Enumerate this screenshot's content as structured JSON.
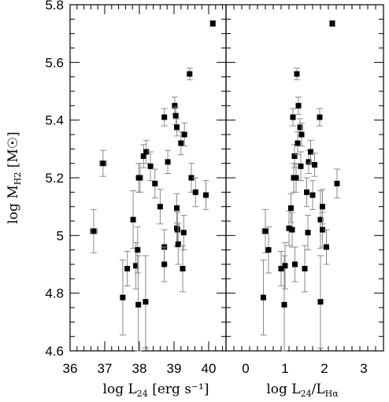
{
  "chart_data": [
    {
      "type": "scatter",
      "panel": "left",
      "xlim": [
        36,
        40.5
      ],
      "ylim": [
        4.6,
        5.8
      ],
      "xticks": [
        36,
        37,
        38,
        39,
        40
      ],
      "yticks": [
        4.6,
        4.8,
        5.0,
        5.2,
        5.4,
        5.6,
        5.8
      ],
      "ytick_labels": [
        "4.6",
        "4.8",
        "5",
        "5.2",
        "5.4",
        "5.6",
        "5.8"
      ],
      "xlabel": {
        "main": "log L",
        "sub": "24",
        "unit": " [erg s⁻¹]"
      },
      "ylabel": {
        "main": "log M",
        "sub": "H2",
        "unit": " [M☉]"
      },
      "points": [
        {
          "x": 36.68,
          "y": 5.015,
          "err": 0.075,
          "xerr": 0.1
        },
        {
          "x": 36.95,
          "y": 5.25,
          "err": 0.045,
          "xerr": 0.1
        },
        {
          "x": 37.52,
          "y": 4.785,
          "err": 0.13
        },
        {
          "x": 37.65,
          "y": 4.885,
          "err": 0.06
        },
        {
          "x": 37.82,
          "y": 5.055,
          "err": 0.1
        },
        {
          "x": 37.9,
          "y": 4.895,
          "err": 0.08
        },
        {
          "x": 37.95,
          "y": 4.95,
          "err": 0.08
        },
        {
          "x": 37.97,
          "y": 4.76,
          "err": 0.17
        },
        {
          "x": 37.98,
          "y": 5.2,
          "err": 0.05
        },
        {
          "x": 38.02,
          "y": 5.2,
          "err": 0.05
        },
        {
          "x": 38.12,
          "y": 5.275,
          "err": 0.04
        },
        {
          "x": 38.18,
          "y": 4.77,
          "err": 0.16
        },
        {
          "x": 38.2,
          "y": 5.29,
          "err": 0.04
        },
        {
          "x": 38.32,
          "y": 5.24,
          "err": 0.05
        },
        {
          "x": 38.45,
          "y": 5.18,
          "err": 0.05
        },
        {
          "x": 38.6,
          "y": 5.1,
          "err": 0.06
        },
        {
          "x": 38.72,
          "y": 4.96,
          "err": 0.06
        },
        {
          "x": 38.72,
          "y": 4.9,
          "err": 0.06
        },
        {
          "x": 38.72,
          "y": 5.41,
          "err": 0.03
        },
        {
          "x": 38.82,
          "y": 5.255,
          "err": 0.04
        },
        {
          "x": 39.02,
          "y": 5.45,
          "err": 0.03
        },
        {
          "x": 39.05,
          "y": 5.415,
          "err": 0.03
        },
        {
          "x": 39.08,
          "y": 5.375,
          "err": 0.03
        },
        {
          "x": 39.08,
          "y": 5.095,
          "err": 0.05
        },
        {
          "x": 39.08,
          "y": 5.025,
          "err": 0.06
        },
        {
          "x": 39.1,
          "y": 5.02,
          "err": 0.06
        },
        {
          "x": 39.12,
          "y": 4.97,
          "err": 0.07
        },
        {
          "x": 39.2,
          "y": 5.32,
          "err": 0.04
        },
        {
          "x": 39.25,
          "y": 4.885,
          "err": 0.08
        },
        {
          "x": 39.28,
          "y": 5.01,
          "err": 0.06
        },
        {
          "x": 39.3,
          "y": 5.35,
          "err": 0.04
        },
        {
          "x": 39.45,
          "y": 5.56,
          "err": 0.02
        },
        {
          "x": 39.5,
          "y": 5.2,
          "err": 0.05
        },
        {
          "x": 39.62,
          "y": 5.15,
          "err": 0.05
        },
        {
          "x": 39.92,
          "y": 5.14,
          "err": 0.05
        },
        {
          "x": 40.12,
          "y": 5.735,
          "err": 0.01
        }
      ]
    },
    {
      "type": "scatter",
      "panel": "right",
      "xlim": [
        -0.5,
        3.5
      ],
      "ylim": [
        4.6,
        5.8
      ],
      "xticks": [
        0,
        1,
        2,
        3
      ],
      "xlabel": {
        "main": "log L",
        "sub": "24",
        "mid": "/L",
        "sub2": "Hα"
      },
      "points": [
        {
          "x": 0.45,
          "y": 4.785,
          "err": 0.13
        },
        {
          "x": 0.5,
          "y": 5.015,
          "err": 0.075,
          "xerr": 0.08
        },
        {
          "x": 0.58,
          "y": 4.95,
          "err": 0.08
        },
        {
          "x": 0.9,
          "y": 4.885,
          "err": 0.06
        },
        {
          "x": 0.98,
          "y": 4.76,
          "err": 0.17
        },
        {
          "x": 1.0,
          "y": 4.895,
          "err": 0.08
        },
        {
          "x": 1.1,
          "y": 5.025,
          "err": 0.06
        },
        {
          "x": 1.15,
          "y": 5.095,
          "err": 0.05
        },
        {
          "x": 1.18,
          "y": 5.02,
          "err": 0.06
        },
        {
          "x": 1.2,
          "y": 5.41,
          "err": 0.03
        },
        {
          "x": 1.22,
          "y": 5.2,
          "err": 0.05
        },
        {
          "x": 1.24,
          "y": 5.275,
          "err": 0.04
        },
        {
          "x": 1.25,
          "y": 4.9,
          "err": 0.06
        },
        {
          "x": 1.28,
          "y": 5.2,
          "err": 0.05
        },
        {
          "x": 1.3,
          "y": 5.56,
          "err": 0.02
        },
        {
          "x": 1.32,
          "y": 5.32,
          "err": 0.04
        },
        {
          "x": 1.34,
          "y": 5.45,
          "err": 0.03
        },
        {
          "x": 1.38,
          "y": 5.375,
          "err": 0.03
        },
        {
          "x": 1.4,
          "y": 5.24,
          "err": 0.05
        },
        {
          "x": 1.42,
          "y": 5.35,
          "err": 0.04
        },
        {
          "x": 1.5,
          "y": 4.885,
          "err": 0.08
        },
        {
          "x": 1.55,
          "y": 5.15,
          "err": 0.05
        },
        {
          "x": 1.58,
          "y": 5.01,
          "err": 0.06
        },
        {
          "x": 1.6,
          "y": 5.255,
          "err": 0.04
        },
        {
          "x": 1.65,
          "y": 5.29,
          "err": 0.04
        },
        {
          "x": 1.7,
          "y": 5.14,
          "err": 0.05
        },
        {
          "x": 1.75,
          "y": 5.245,
          "err": 0.04
        },
        {
          "x": 1.88,
          "y": 5.41,
          "err": 0.03
        },
        {
          "x": 1.9,
          "y": 5.055,
          "err": 0.1
        },
        {
          "x": 1.9,
          "y": 4.77,
          "err": 0.16
        },
        {
          "x": 1.95,
          "y": 5.1,
          "err": 0.06
        },
        {
          "x": 1.95,
          "y": 5.02,
          "err": 0.06
        },
        {
          "x": 2.05,
          "y": 4.96,
          "err": 0.06
        },
        {
          "x": 2.2,
          "y": 5.735,
          "err": 0.01
        },
        {
          "x": 2.32,
          "y": 5.18,
          "err": 0.05
        }
      ]
    }
  ]
}
